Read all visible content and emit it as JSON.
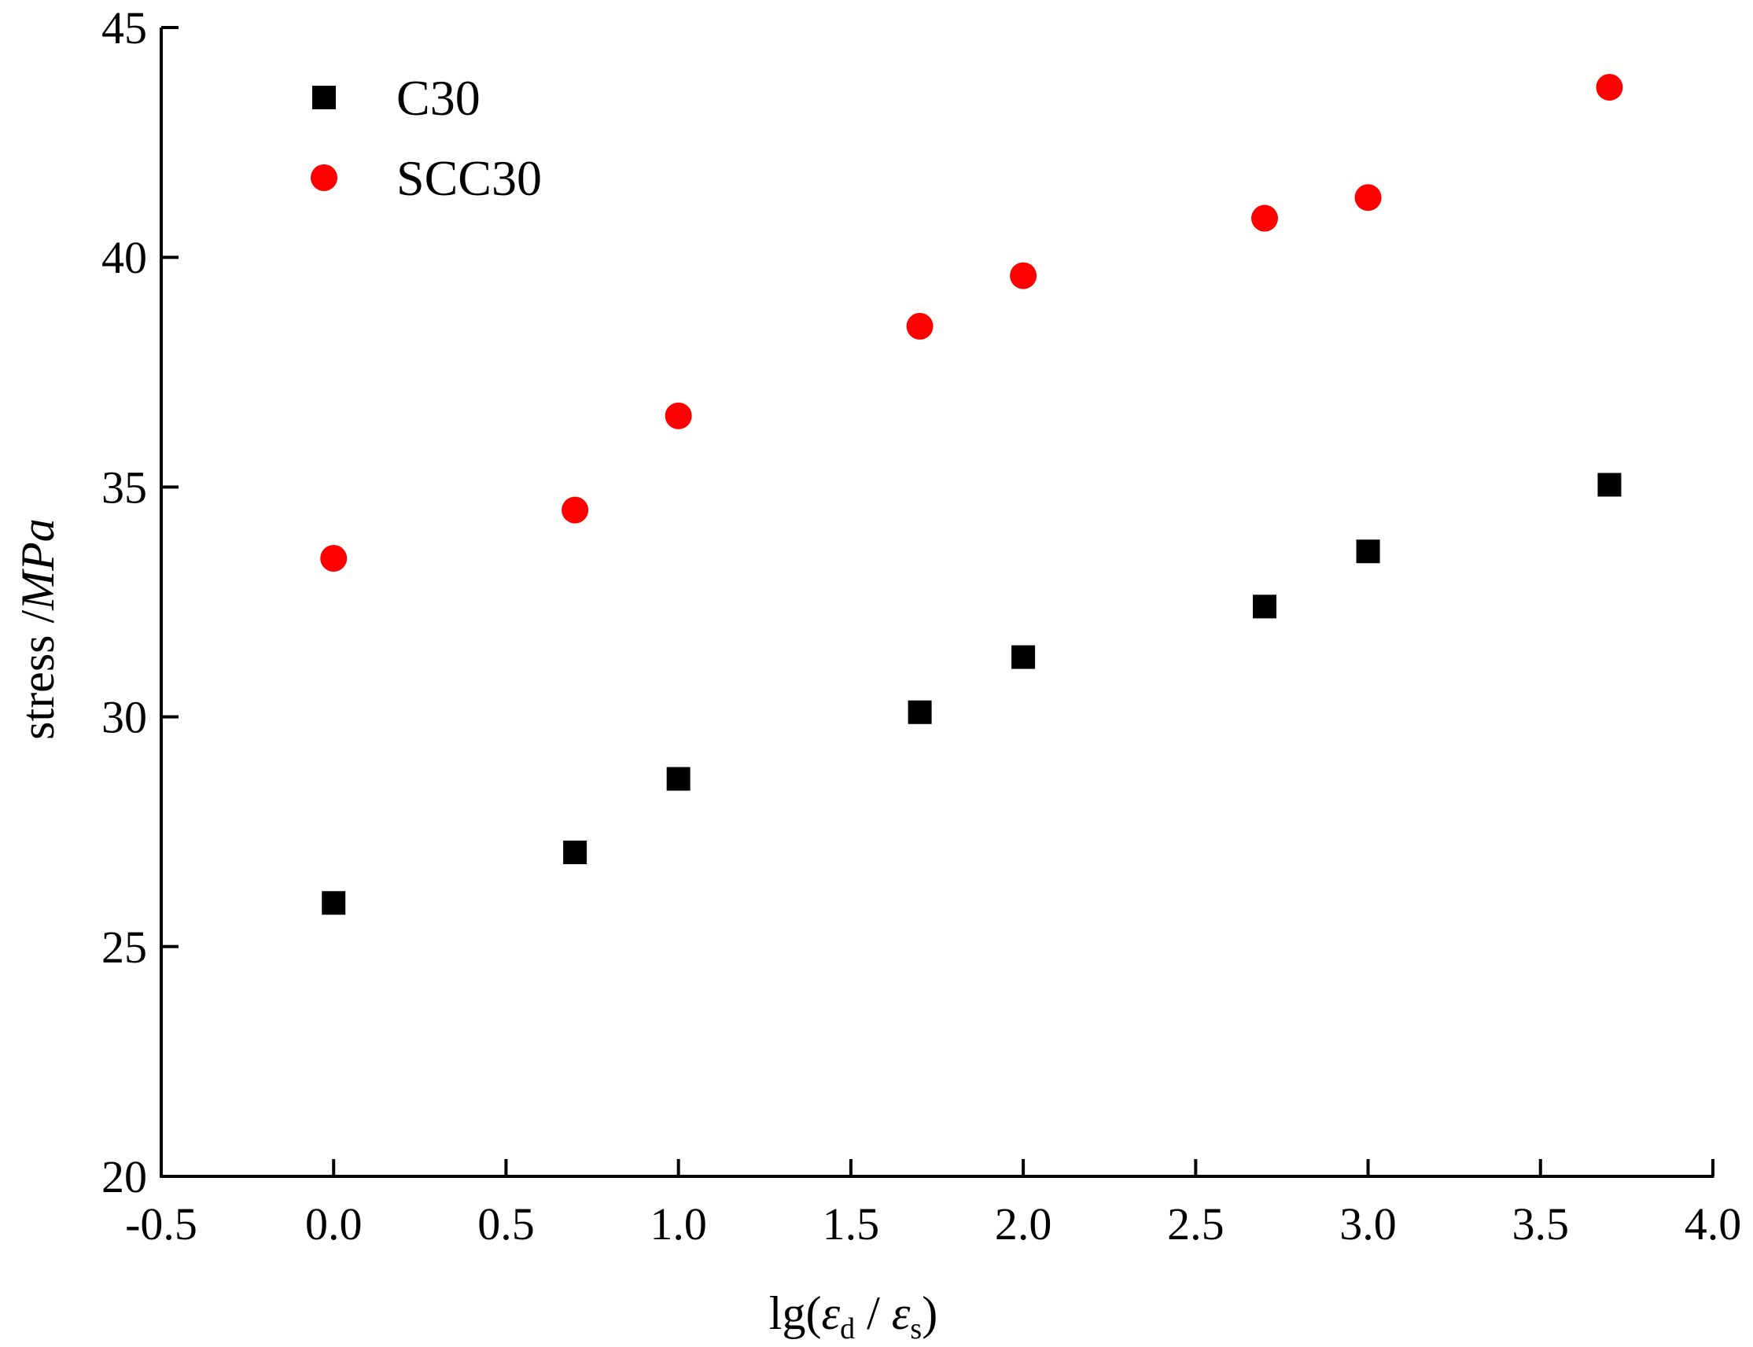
{
  "chart_data": {
    "type": "scatter",
    "title": "",
    "xlabel": {
      "prefix": "lg(",
      "eps1": "ε",
      "sub1": "d",
      "slash": " / ",
      "eps2": "ε",
      "sub2": "s",
      "suffix": ")"
    },
    "ylabel": {
      "plain": "stress /",
      "italic": "MPa"
    },
    "xlim": [
      -0.5,
      4.0
    ],
    "ylim": [
      20,
      45
    ],
    "xticks": [
      -0.5,
      0.0,
      0.5,
      1.0,
      1.5,
      2.0,
      2.5,
      3.0,
      3.5,
      4.0
    ],
    "xtick_labels": [
      "-0.5",
      "0.0",
      "0.5",
      "1.0",
      "1.5",
      "2.0",
      "2.5",
      "3.0",
      "3.5",
      "4.0"
    ],
    "yticks": [
      20,
      25,
      30,
      35,
      40,
      45
    ],
    "ytick_labels": [
      "20",
      "25",
      "30",
      "35",
      "40",
      "45"
    ],
    "grid": false,
    "legend_position": "top-left",
    "series": [
      {
        "name": "C30",
        "marker": "square",
        "color": "#000000",
        "x": [
          0.0,
          0.7,
          1.0,
          1.7,
          2.0,
          2.7,
          3.0,
          3.7
        ],
        "y": [
          25.95,
          27.05,
          28.65,
          30.1,
          31.3,
          32.4,
          33.6,
          35.05
        ]
      },
      {
        "name": "SCC30",
        "marker": "circle",
        "color": "#ff0000",
        "x": [
          0.0,
          0.7,
          1.0,
          1.7,
          2.0,
          2.7,
          3.0,
          3.7
        ],
        "y": [
          33.45,
          34.5,
          36.55,
          38.5,
          39.6,
          40.85,
          41.3,
          43.7
        ]
      }
    ]
  }
}
